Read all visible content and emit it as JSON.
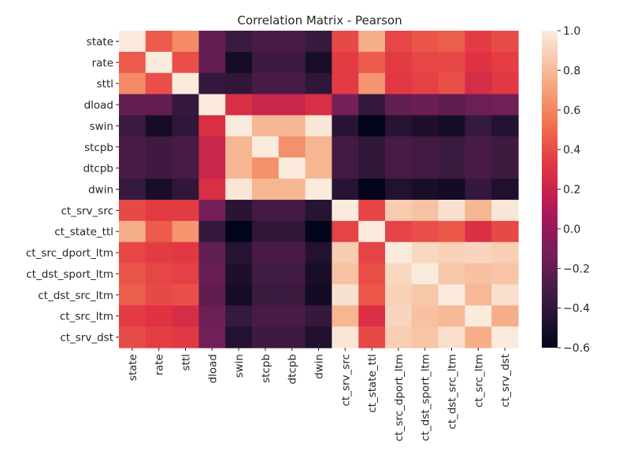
{
  "chart_data": {
    "type": "heatmap",
    "title": "Correlation Matrix - Pearson",
    "labels": [
      "state",
      "rate",
      "sttl",
      "dload",
      "swin",
      "stcpb",
      "dtcpb",
      "dwin",
      "ct_srv_src",
      "ct_state_ttl",
      "ct_src_dport_ltm",
      "ct_dst_sport_ltm",
      "ct_dst_src_ltm",
      "ct_src_ltm",
      "ct_srv_dst"
    ],
    "matrix": [
      [
        1.0,
        0.45,
        0.62,
        -0.19,
        -0.35,
        -0.29,
        -0.29,
        -0.37,
        0.39,
        0.75,
        0.38,
        0.43,
        0.46,
        0.34,
        0.4
      ],
      [
        0.45,
        1.0,
        0.41,
        -0.19,
        -0.52,
        -0.34,
        -0.34,
        -0.5,
        0.34,
        0.45,
        0.34,
        0.38,
        0.39,
        0.31,
        0.35
      ],
      [
        0.62,
        0.41,
        1.0,
        -0.38,
        -0.4,
        -0.3,
        -0.3,
        -0.4,
        0.34,
        0.66,
        0.33,
        0.36,
        0.41,
        0.26,
        0.33
      ],
      [
        -0.19,
        -0.19,
        -0.38,
        1.0,
        0.28,
        0.21,
        0.21,
        0.28,
        -0.12,
        -0.38,
        -0.2,
        -0.17,
        -0.21,
        -0.16,
        -0.14
      ],
      [
        -0.35,
        -0.52,
        -0.4,
        0.28,
        1.0,
        0.78,
        0.78,
        0.98,
        -0.43,
        -0.6,
        -0.44,
        -0.48,
        -0.52,
        -0.37,
        -0.46
      ],
      [
        -0.29,
        -0.34,
        -0.3,
        0.21,
        0.78,
        1.0,
        0.64,
        0.78,
        -0.32,
        -0.4,
        -0.3,
        -0.33,
        -0.35,
        -0.3,
        -0.34
      ],
      [
        -0.29,
        -0.34,
        -0.3,
        0.21,
        0.78,
        0.64,
        1.0,
        0.78,
        -0.32,
        -0.4,
        -0.3,
        -0.33,
        -0.35,
        -0.3,
        -0.34
      ],
      [
        -0.37,
        -0.5,
        -0.4,
        0.28,
        0.98,
        0.78,
        0.78,
        1.0,
        -0.44,
        -0.62,
        -0.46,
        -0.5,
        -0.53,
        -0.38,
        -0.47
      ],
      [
        0.39,
        0.34,
        0.34,
        -0.12,
        -0.43,
        -0.32,
        -0.32,
        -0.44,
        1.0,
        0.37,
        0.87,
        0.83,
        0.96,
        0.78,
        0.98
      ],
      [
        0.75,
        0.45,
        0.66,
        -0.38,
        -0.6,
        -0.4,
        -0.4,
        -0.62,
        0.37,
        1.0,
        0.37,
        0.41,
        0.44,
        0.29,
        0.39
      ],
      [
        0.38,
        0.34,
        0.33,
        -0.2,
        -0.44,
        -0.3,
        -0.3,
        -0.46,
        0.87,
        0.37,
        1.0,
        0.92,
        0.89,
        0.91,
        0.88
      ],
      [
        0.43,
        0.38,
        0.36,
        -0.17,
        -0.48,
        -0.33,
        -0.33,
        -0.5,
        0.83,
        0.41,
        0.92,
        1.0,
        0.85,
        0.82,
        0.84
      ],
      [
        0.46,
        0.39,
        0.41,
        -0.21,
        -0.52,
        -0.35,
        -0.35,
        -0.53,
        0.96,
        0.44,
        0.89,
        0.85,
        1.0,
        0.79,
        0.95
      ],
      [
        0.34,
        0.31,
        0.26,
        -0.16,
        -0.37,
        -0.3,
        -0.3,
        -0.38,
        0.78,
        0.29,
        0.91,
        0.82,
        0.79,
        1.0,
        0.75
      ],
      [
        0.4,
        0.35,
        0.33,
        -0.14,
        -0.46,
        -0.34,
        -0.34,
        -0.47,
        0.98,
        0.39,
        0.88,
        0.84,
        0.95,
        0.75,
        1.0
      ]
    ],
    "vmin": -0.6,
    "vmax": 1.0,
    "colorbar_ticks": [
      1.0,
      0.8,
      0.6,
      0.4,
      0.2,
      0.0,
      -0.2,
      -0.4,
      -0.6
    ],
    "colorbar_tick_labels": [
      "1.0",
      "0.8",
      "0.6",
      "0.4",
      "0.2",
      "0.0",
      "−0.2",
      "−0.4",
      "−0.6"
    ],
    "colormap": "rocket",
    "colormap_stops": [
      "#03051a",
      "#36193e",
      "#701f57",
      "#ad1759",
      "#e13342",
      "#f37651",
      "#f6b48f",
      "#faebdd"
    ],
    "grid": false
  }
}
